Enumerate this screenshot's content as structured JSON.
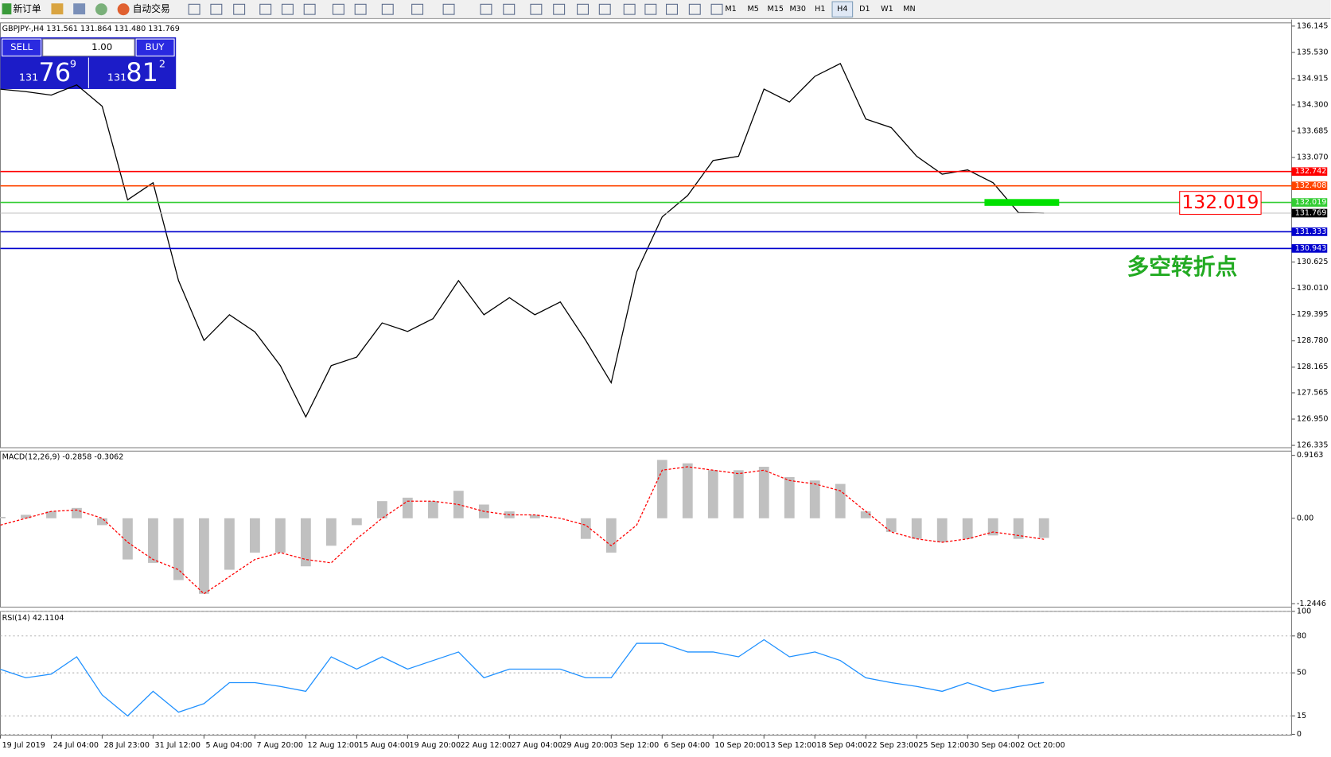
{
  "toolbar": {
    "new_order": "新订单",
    "auto_trading": "自动交易",
    "timeframes": [
      "M1",
      "M5",
      "M15",
      "M30",
      "H1",
      "H4",
      "D1",
      "W1",
      "MN"
    ],
    "active_timeframe": "H4"
  },
  "trade_panel": {
    "sell": "SELL",
    "buy": "BUY",
    "lot": "1.00",
    "sell_big": "131",
    "sell_main": "76",
    "sell_sup": "9",
    "buy_big": "131",
    "buy_main": "81",
    "buy_sup": "2"
  },
  "chart_data": [
    {
      "type": "line",
      "title": "GBPJPY-,H4  131.561 131.864 131.480 131.769",
      "color": "#000000",
      "x": [
        0,
        1,
        2,
        3,
        4,
        5,
        6,
        7,
        8,
        9,
        10,
        11,
        12,
        13,
        14,
        15,
        16,
        17,
        18,
        19,
        20,
        21,
        22,
        23,
        24,
        25,
        26,
        27,
        28,
        29,
        30,
        31,
        32,
        33,
        34,
        35,
        36,
        37,
        38,
        39,
        40,
        41
      ],
      "values": [
        134.67,
        134.61,
        134.53,
        134.77,
        134.27,
        132.08,
        132.48,
        130.19,
        128.79,
        129.39,
        128.99,
        128.2,
        127.0,
        128.2,
        128.4,
        129.2,
        129.0,
        129.3,
        130.19,
        129.39,
        129.79,
        129.39,
        129.69,
        128.79,
        127.8,
        130.39,
        131.68,
        132.18,
        133.0,
        133.1,
        134.67,
        134.37,
        134.97,
        135.27,
        133.97,
        133.77,
        133.1,
        132.68,
        132.78,
        132.48,
        131.78,
        131.769
      ],
      "xlim": [
        0,
        50.73
      ],
      "xticks": [
        {
          "value": 0,
          "label": "19 Jul 2019"
        },
        {
          "value": 2,
          "label": "24 Jul 04:00"
        },
        {
          "value": 4,
          "label": "28 Jul 23:00"
        },
        {
          "value": 6,
          "label": "31 Jul 12:00"
        },
        {
          "value": 8,
          "label": "5 Aug 04:00"
        },
        {
          "value": 10,
          "label": "7 Aug 20:00"
        },
        {
          "value": 12,
          "label": "12 Aug 12:00"
        },
        {
          "value": 14,
          "label": "15 Aug 04:00"
        },
        {
          "value": 16,
          "label": "19 Aug 20:00"
        },
        {
          "value": 18,
          "label": "22 Aug 12:00"
        },
        {
          "value": 20,
          "label": "27 Aug 04:00"
        },
        {
          "value": 22,
          "label": "29 Aug 20:00"
        },
        {
          "value": 24,
          "label": "3 Sep 12:00"
        },
        {
          "value": 26,
          "label": "6 Sep 04:00"
        },
        {
          "value": 28,
          "label": "10 Sep 20:00"
        },
        {
          "value": 30,
          "label": "13 Sep 12:00"
        },
        {
          "value": 32,
          "label": "18 Sep 04:00"
        },
        {
          "value": 34,
          "label": "22 Sep 23:00"
        },
        {
          "value": 36,
          "label": "25 Sep 12:00"
        },
        {
          "value": 38,
          "label": "30 Sep 04:00"
        },
        {
          "value": 40,
          "label": "2 Oct 20:00"
        }
      ],
      "ylim": [
        126.28,
        136.22
      ],
      "yticks": [
        136.145,
        {
          "value": 135.53,
          "label": "135.530"
        },
        134.915,
        {
          "value": 134.3,
          "label": "134.300"
        },
        133.685,
        {
          "value": 133.07,
          "label": "133.070"
        },
        130.625,
        {
          "value": 130.01,
          "label": "130.010"
        },
        129.395,
        {
          "value": 128.78,
          "label": "128.780"
        },
        128.165,
        127.565,
        {
          "value": 126.95,
          "label": "126.950"
        },
        126.335
      ],
      "grid": false,
      "hlines": [
        {
          "value": 132.742,
          "color": "#ff0000"
        },
        {
          "value": 132.408,
          "color": "#ff4500"
        },
        {
          "value": 132.019,
          "color": "#32cd32"
        },
        {
          "value": 131.333,
          "color": "#0000cd"
        },
        {
          "value": 130.943,
          "color": "#0000cd"
        }
      ],
      "last": 131.769,
      "annotation": "多空转折点"
    },
    {
      "type": "bar",
      "title": "MACD(12,26,9) -0.2858 -0.3062",
      "series": [
        {
          "color": "#c0c0c0",
          "style": "bar",
          "values": [
            0.02,
            0.05,
            0.1,
            0.15,
            -0.1,
            -0.6,
            -0.65,
            -0.9,
            -1.1,
            -0.75,
            -0.5,
            -0.5,
            -0.7,
            -0.4,
            -0.1,
            0.25,
            0.3,
            0.25,
            0.4,
            0.2,
            0.1,
            0.05,
            0.0,
            -0.3,
            -0.5,
            0.0,
            0.85,
            0.8,
            0.7,
            0.7,
            0.75,
            0.6,
            0.55,
            0.5,
            0.1,
            -0.2,
            -0.3,
            -0.35,
            -0.3,
            -0.25,
            -0.3,
            -0.2858
          ]
        },
        {
          "color": "#ff0000",
          "style": "dashed-line",
          "values": [
            -0.1,
            0.0,
            0.1,
            0.12,
            0.0,
            -0.35,
            -0.6,
            -0.75,
            -1.1,
            -0.85,
            -0.6,
            -0.5,
            -0.6,
            -0.65,
            -0.3,
            0.0,
            0.25,
            0.25,
            0.2,
            0.1,
            0.05,
            0.05,
            0.0,
            -0.1,
            -0.4,
            -0.1,
            0.7,
            0.75,
            0.7,
            0.65,
            0.7,
            0.55,
            0.5,
            0.4,
            0.1,
            -0.2,
            -0.3,
            -0.35,
            -0.3,
            -0.2,
            -0.25,
            -0.3062
          ]
        }
      ],
      "ylim": [
        -1.294,
        0.978
      ],
      "yticks": [
        0.9163,
        {
          "value": 0,
          "label": "0.00"
        },
        -1.2446
      ],
      "grid": false
    },
    {
      "type": "line",
      "title": "RSI(14) 42.1104",
      "color": "#1e90ff",
      "values": [
        52.8,
        46,
        49,
        63,
        32,
        15,
        35,
        18,
        25,
        42,
        42,
        39,
        35,
        63,
        53,
        63,
        53,
        60,
        67,
        46,
        53,
        53,
        53,
        46,
        46,
        74,
        74,
        67,
        67,
        63,
        77,
        63,
        67,
        60,
        46,
        42,
        39,
        35,
        42,
        35,
        39,
        42.1104
      ],
      "ylim": [
        0,
        100
      ],
      "yticks": [
        100,
        80,
        50,
        15,
        0
      ],
      "grid": true
    }
  ]
}
